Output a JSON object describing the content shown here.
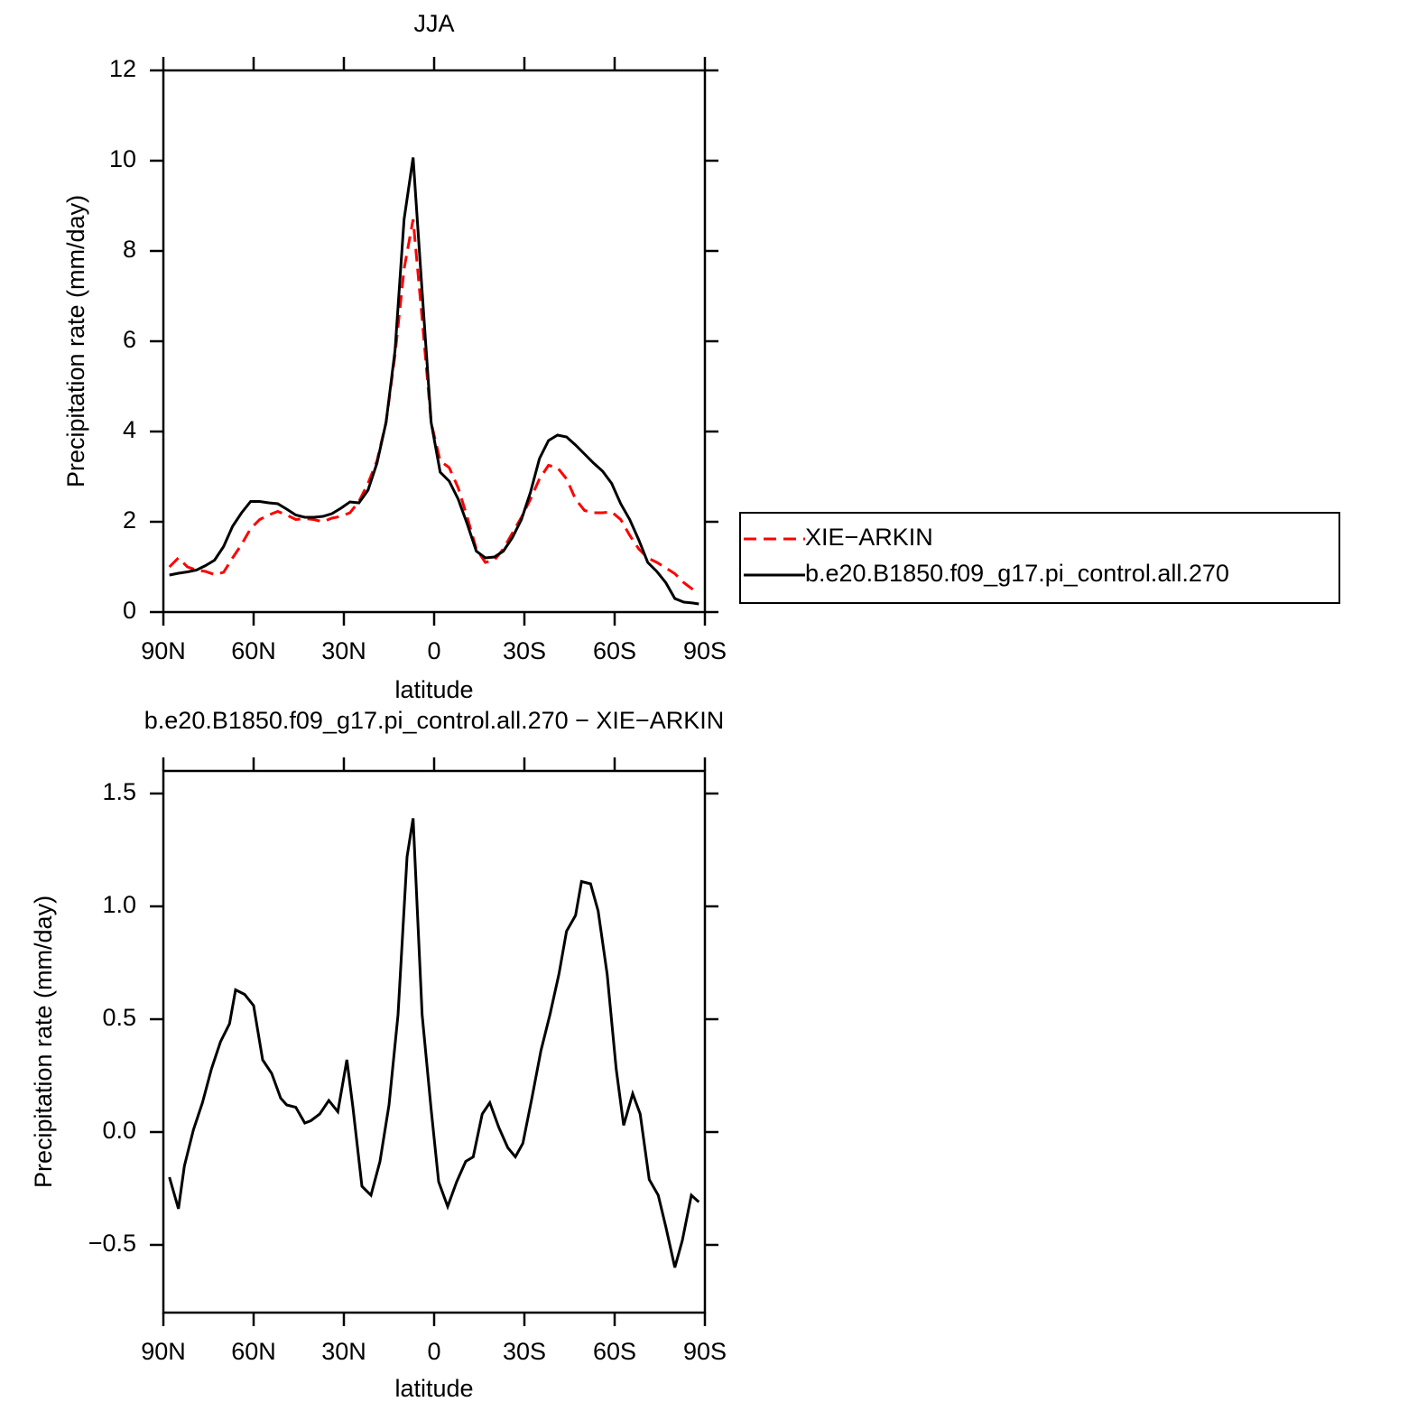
{
  "chart_data": [
    {
      "type": "line",
      "title": "JJA",
      "xlabel": "latitude",
      "ylabel": "Precipitation rate (mm/day)",
      "x": [
        88,
        85,
        82,
        79,
        76,
        73,
        70,
        67,
        64,
        61,
        58,
        55,
        52,
        49,
        46,
        43,
        40,
        37,
        34,
        31,
        28,
        25,
        22,
        19,
        16,
        13,
        10,
        7,
        4,
        1,
        -2,
        -5,
        -8,
        -11,
        -14,
        -17,
        -20,
        -23,
        -26,
        -29,
        -32,
        -35,
        -38,
        -41,
        -44,
        -47,
        -50,
        -53,
        -56,
        -59,
        -62,
        -65,
        -68,
        -71,
        -74,
        -77,
        -80,
        -83,
        -86,
        -88
      ],
      "xlim": [
        90,
        -90
      ],
      "xticks": [
        {
          "value": 90,
          "label": "90N"
        },
        {
          "value": 60,
          "label": "60N"
        },
        {
          "value": 30,
          "label": "30N"
        },
        0,
        {
          "value": -30,
          "label": "30S"
        },
        {
          "value": -60,
          "label": "60S"
        },
        {
          "value": -90,
          "label": "90S"
        }
      ],
      "ylim": [
        0,
        12
      ],
      "yticks": [
        0,
        2,
        4,
        6,
        8,
        10,
        12
      ],
      "legend": "outside-right",
      "series": [
        {
          "name": "XIE−ARKIN",
          "color": "#ff0000",
          "dash": "dashed",
          "values": [
            1.0,
            1.2,
            1.0,
            0.93,
            0.9,
            0.83,
            0.88,
            1.2,
            1.5,
            1.85,
            2.05,
            2.15,
            2.23,
            2.15,
            2.05,
            2.07,
            2.05,
            2.0,
            2.08,
            2.12,
            2.2,
            2.45,
            2.85,
            3.35,
            4.2,
            5.7,
            7.6,
            8.7,
            6.5,
            4.2,
            3.35,
            3.2,
            2.75,
            2.1,
            1.4,
            1.1,
            1.15,
            1.4,
            1.75,
            2.1,
            2.5,
            2.95,
            3.25,
            3.2,
            2.95,
            2.5,
            2.25,
            2.2,
            2.2,
            2.22,
            2.05,
            1.7,
            1.4,
            1.2,
            1.1,
            0.98,
            0.85,
            0.65,
            0.5,
            0.5
          ]
        },
        {
          "name": "b.e20.B1850.f09_g17.pi_control.all.270",
          "color": "#000000",
          "dash": "solid",
          "values": [
            0.82,
            0.86,
            0.89,
            0.93,
            1.03,
            1.15,
            1.45,
            1.9,
            2.2,
            2.45,
            2.45,
            2.42,
            2.4,
            2.28,
            2.15,
            2.1,
            2.1,
            2.12,
            2.18,
            2.3,
            2.44,
            2.42,
            2.7,
            3.3,
            4.2,
            5.8,
            8.7,
            10.07,
            7.1,
            4.2,
            3.1,
            2.9,
            2.5,
            1.95,
            1.35,
            1.2,
            1.22,
            1.35,
            1.65,
            2.05,
            2.65,
            3.4,
            3.8,
            3.92,
            3.88,
            3.7,
            3.5,
            3.3,
            3.12,
            2.85,
            2.4,
            2.05,
            1.6,
            1.1,
            0.9,
            0.65,
            0.3,
            0.22,
            0.2,
            0.18
          ]
        }
      ]
    },
    {
      "type": "line",
      "title": "b.e20.B1850.f09_g17.pi_control.all.270 − XIE−ARKIN",
      "xlabel": "latitude",
      "ylabel": "Precipitation rate (mm/day)",
      "x": [
        88,
        85,
        83,
        80,
        77,
        74,
        71,
        68,
        66,
        63,
        60,
        57,
        54,
        51,
        49,
        46,
        43,
        41,
        38,
        35,
        32,
        29,
        27,
        24,
        21,
        18,
        15,
        12,
        9,
        7,
        4,
        1,
        -1.5,
        -4.5,
        -7.5,
        -10.5,
        -13,
        -16,
        -18.5,
        -21.5,
        -24.5,
        -27,
        -29.5,
        -32.5,
        -35.5,
        -38.5,
        -41.5,
        -44,
        -47,
        -49,
        -52,
        -54.5,
        -57.5,
        -60.5,
        -63,
        -66,
        -68.5,
        -71.5,
        -74.5,
        -77,
        -80,
        -82.5,
        -85.5,
        -88
      ],
      "xlim": [
        90,
        -90
      ],
      "xticks": [
        {
          "value": 90,
          "label": "90N"
        },
        {
          "value": 60,
          "label": "60N"
        },
        {
          "value": 30,
          "label": "30N"
        },
        0,
        {
          "value": -30,
          "label": "30S"
        },
        {
          "value": -60,
          "label": "60S"
        },
        {
          "value": -90,
          "label": "90S"
        }
      ],
      "ylim": [
        -0.8,
        1.6
      ],
      "yticks": [
        {
          "value": -0.5,
          "label": "−0.5"
        },
        {
          "value": 0,
          "label": "0.0"
        },
        0.5,
        {
          "value": 1,
          "label": "1.0"
        },
        1.5
      ],
      "series": [
        {
          "color": "#000000",
          "dash": "solid",
          "values": [
            -0.2,
            -0.34,
            -0.15,
            0.01,
            0.13,
            0.28,
            0.4,
            0.48,
            0.63,
            0.61,
            0.56,
            0.32,
            0.26,
            0.15,
            0.12,
            0.11,
            0.04,
            0.05,
            0.08,
            0.14,
            0.09,
            0.32,
            0.11,
            -0.24,
            -0.28,
            -0.13,
            0.12,
            0.52,
            1.22,
            1.39,
            0.52,
            0.1,
            -0.22,
            -0.33,
            -0.22,
            -0.13,
            -0.11,
            0.08,
            0.13,
            0.02,
            -0.07,
            -0.11,
            -0.05,
            0.15,
            0.36,
            0.52,
            0.7,
            0.89,
            0.96,
            1.11,
            1.1,
            0.98,
            0.7,
            0.28,
            0.03,
            0.17,
            0.08,
            -0.21,
            -0.28,
            -0.42,
            -0.6,
            -0.48,
            -0.28,
            -0.31
          ]
        }
      ]
    }
  ]
}
